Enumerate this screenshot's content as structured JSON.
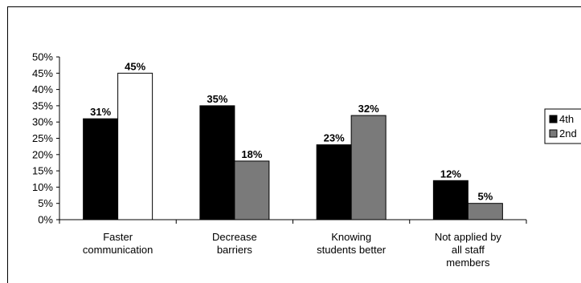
{
  "chart_data": {
    "type": "bar",
    "categories": [
      [
        "Faster",
        "communication"
      ],
      [
        "Decrease",
        "barriers"
      ],
      [
        "Knowing",
        "students better"
      ],
      [
        "Not applied by",
        "all staff",
        "members"
      ]
    ],
    "series": [
      {
        "name": "4th",
        "values": [
          31,
          35,
          23,
          12
        ],
        "labels": [
          "31%",
          "35%",
          "23%",
          "12%"
        ],
        "color": "#000000"
      },
      {
        "name": "2nd",
        "values": [
          45,
          18,
          32,
          5
        ],
        "labels": [
          "45%",
          "18%",
          "32%",
          "5%"
        ],
        "color": "#7a7a7a",
        "first_color": "#ffffff"
      }
    ],
    "ylim": [
      0,
      50
    ],
    "yticks": [
      0,
      5,
      10,
      15,
      20,
      25,
      30,
      35,
      40,
      45,
      50
    ],
    "ytick_labels": [
      "0%",
      "5%",
      "10%",
      "15%",
      "20%",
      "25%",
      "30%",
      "35%",
      "40%",
      "45%",
      "50%"
    ],
    "grid": false,
    "legend": "right",
    "title": "",
    "xlabel": "",
    "ylabel": ""
  }
}
